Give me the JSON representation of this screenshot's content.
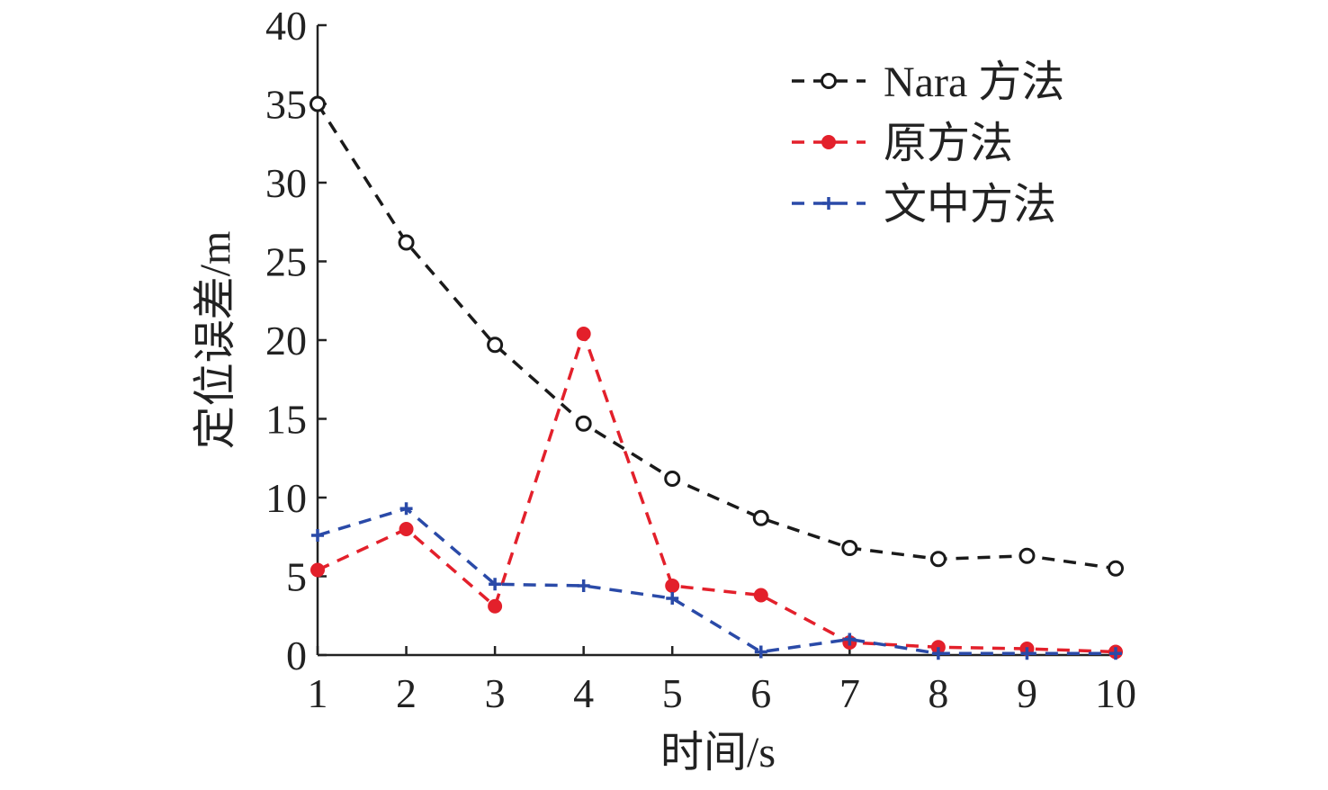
{
  "chart_data": {
    "type": "line",
    "xlabel": "时间/s",
    "ylabel": "定位误差/m",
    "x": [
      1,
      2,
      3,
      4,
      5,
      6,
      7,
      8,
      9,
      10
    ],
    "xlim": [
      1,
      10
    ],
    "ylim": [
      0,
      40
    ],
    "xticks": [
      1,
      2,
      3,
      4,
      5,
      6,
      7,
      8,
      9,
      10
    ],
    "yticks": [
      0,
      5,
      10,
      15,
      20,
      25,
      30,
      35,
      40
    ],
    "grid": false,
    "legend_position": "top-right",
    "series": [
      {
        "name": "Nara 方法",
        "color": "#1a1a1a",
        "marker": "open-circle",
        "line_style": "dashed",
        "values": [
          35.0,
          26.2,
          19.7,
          14.7,
          11.2,
          8.7,
          6.8,
          6.1,
          6.3,
          5.5
        ]
      },
      {
        "name": "原方法",
        "color": "#e3202b",
        "marker": "filled-circle",
        "line_style": "dashed",
        "values": [
          5.4,
          8.0,
          3.1,
          20.4,
          4.4,
          3.8,
          0.8,
          0.5,
          0.4,
          0.2
        ]
      },
      {
        "name": "文中方法",
        "color": "#2a4aa8",
        "marker": "plus",
        "line_style": "dashed",
        "values": [
          7.6,
          9.3,
          4.5,
          4.4,
          3.6,
          0.2,
          1.0,
          0.1,
          0.1,
          0.1
        ]
      }
    ]
  }
}
